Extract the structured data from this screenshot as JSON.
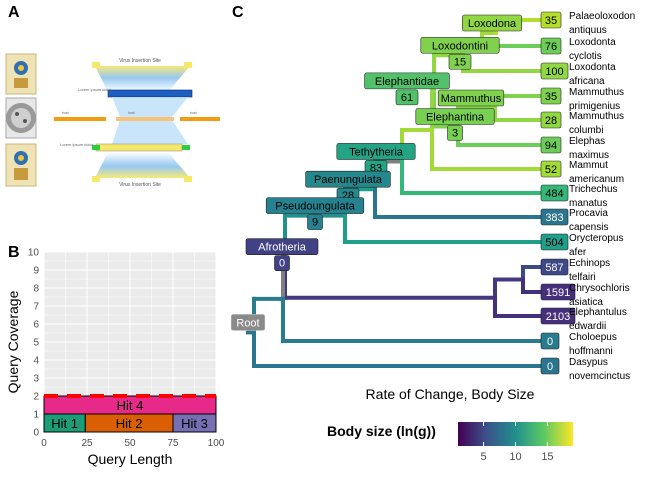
{
  "panels": {
    "a": "A",
    "b": "B",
    "c": "C"
  },
  "panel_a": {
    "top_label": "Virus Insertion Site",
    "bottom_label": "Virus Insertion Site",
    "left_small_labels": [
      "Lorem ipsum dolor",
      "Lorem ipsum dolor"
    ],
    "bar_labels": [
      "host",
      "host",
      "host",
      "host"
    ]
  },
  "colors": {
    "hit1": "#1b9e77",
    "hit2": "#d95f02",
    "hit3": "#7570b3",
    "hit4": "#e7298a",
    "cov_line": "#ff0000",
    "panel_bg": "#ebebeb",
    "tree_gray": "#808080"
  },
  "chart_data": [
    {
      "type": "bar",
      "panel": "B",
      "xlabel": "Query Length",
      "ylabel": "Query Coverage",
      "xlim": [
        0,
        100
      ],
      "ylim": [
        0,
        10
      ],
      "x_ticks": [
        0,
        25,
        50,
        75,
        100
      ],
      "y_ticks": [
        0,
        1,
        2,
        3,
        4,
        5,
        6,
        7,
        8,
        9,
        10
      ],
      "hits": [
        {
          "label": "Hit 1",
          "start": 0,
          "end": 24,
          "row": 0
        },
        {
          "label": "Hit 2",
          "start": 24,
          "end": 75,
          "row": 0
        },
        {
          "label": "Hit 3",
          "start": 75,
          "end": 100,
          "row": 0
        },
        {
          "label": "Hit 4",
          "start": 0,
          "end": 100,
          "row": 1
        }
      ],
      "coverage_line": {
        "y": 2,
        "style": "dashed"
      },
      "grid": true
    },
    {
      "type": "tree",
      "panel": "C",
      "xlabel": "Rate of Change, Body Size",
      "legend": {
        "title": "Body size (ln(g))",
        "ticks": [
          5,
          10,
          15
        ],
        "range": [
          1,
          19
        ],
        "placement": "bottom"
      },
      "tips": [
        {
          "count": "35",
          "name": "Palaeoloxodon antiquus",
          "body": 17
        },
        {
          "count": "76",
          "name": "Loxodonta cyclotis",
          "body": 15
        },
        {
          "count": "100",
          "name": "Loxodonta africana",
          "body": 16
        },
        {
          "count": "35",
          "name": "Mammuthus primigenius",
          "body": 15.5
        },
        {
          "count": "28",
          "name": "Mammuthus columbi",
          "body": 16
        },
        {
          "count": "94",
          "name": "Elephas maximus",
          "body": 15
        },
        {
          "count": "52",
          "name": "Mammut americanum",
          "body": 16.5
        },
        {
          "count": "484",
          "name": "Trichechus manatus",
          "body": 13
        },
        {
          "count": "383",
          "name": "Procavia capensis",
          "body": 8
        },
        {
          "count": "504",
          "name": "Orycteropus afer",
          "body": 11
        },
        {
          "count": "587",
          "name": "Echinops telfairi",
          "body": 5
        },
        {
          "count": "1591",
          "name": "Chrysochloris asiatica",
          "body": 3.5
        },
        {
          "count": "2103",
          "name": "Elephantulus edwardii",
          "body": 3.5
        },
        {
          "count": "0",
          "name": "Choloepus hoffmanni",
          "body": 8.5
        },
        {
          "count": "0",
          "name": "Dasypus novemcinctus",
          "body": 8
        }
      ],
      "clades": [
        {
          "name": "Loxodona",
          "count": ""
        },
        {
          "name": "Loxodontini",
          "count": "15"
        },
        {
          "name": "Elephantidae",
          "count": "61"
        },
        {
          "name": "Mammuthus",
          "count": ""
        },
        {
          "name": "Elephantina",
          "count": "3"
        },
        {
          "name": "Tethytheria",
          "count": "83"
        },
        {
          "name": "Paenungulata",
          "count": "28"
        },
        {
          "name": "Pseudoungulata",
          "count": "9"
        },
        {
          "name": "Afrotheria",
          "count": "0"
        },
        {
          "name": "Root",
          "count": ""
        }
      ]
    }
  ]
}
